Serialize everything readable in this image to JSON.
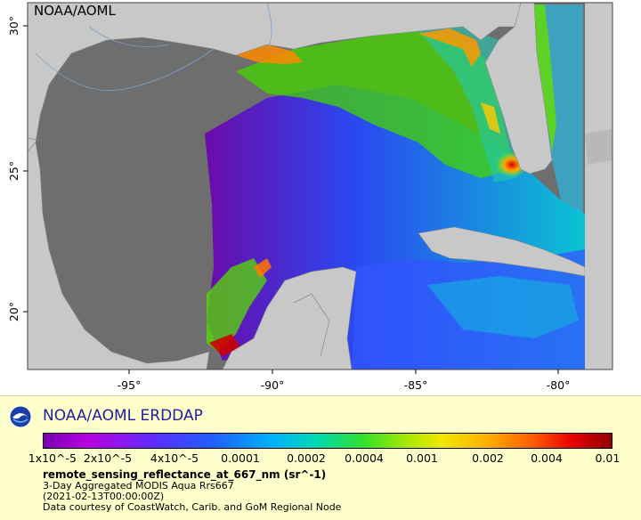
{
  "map": {
    "watermark": "NOAA/AOML",
    "lon_ticks": [
      "-95°",
      "-90°",
      "-85°",
      "-80°"
    ],
    "lat_ticks": [
      "30°",
      "25°",
      "20°"
    ],
    "colors": {
      "land": "#c8c8c8",
      "nodata_water": "#6e6e6e",
      "background": "#ffffff"
    }
  },
  "legend": {
    "brand": "NOAA/AOML ERDDAP",
    "logo_icon": "noaa-logo-icon",
    "scale_labels": [
      "1x10^-5",
      "2x10^-5",
      "4x10^-5",
      "0.0001",
      "0.0002",
      "0.0004",
      "0.001",
      "0.002",
      "0.004",
      "0.01"
    ],
    "variable": "remote_sensing_reflectance_at_667_nm (sr^-1)",
    "info": [
      "3-Day Aggregated MODIS Aqua Rrs667",
      "(2021-02-13T00:00:00Z)",
      "Data courtesy of CoastWatch, Carib. and GoM Regional Node"
    ],
    "colors": {
      "panel": "#ffffcc",
      "brand_text": "#1f1f9e"
    }
  }
}
